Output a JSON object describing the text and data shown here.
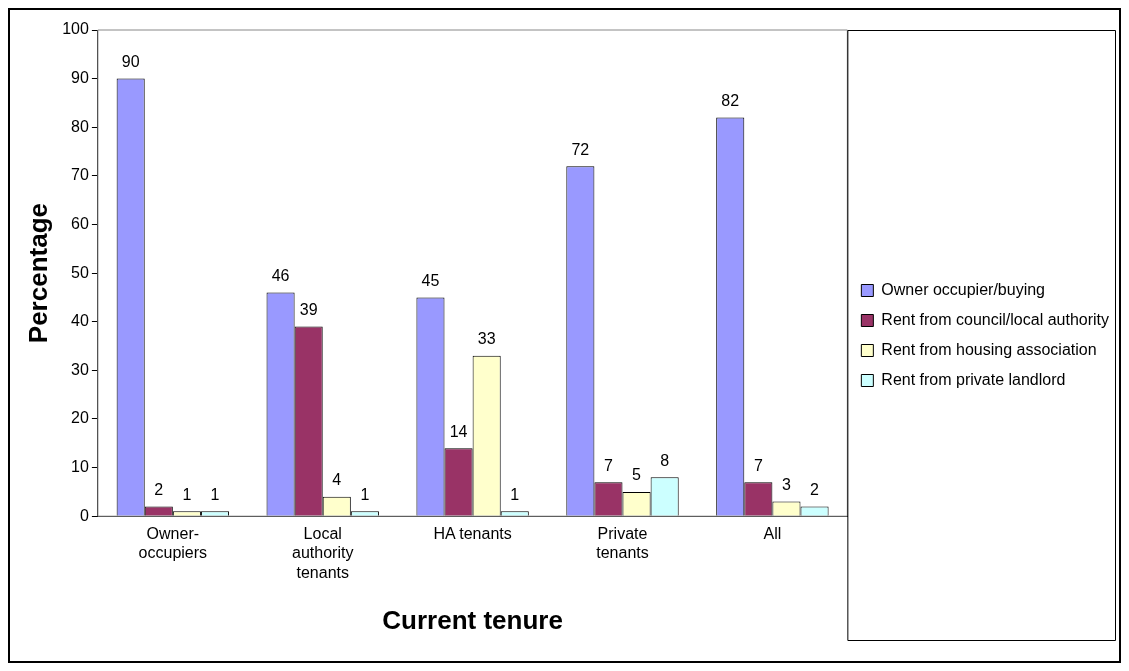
{
  "chart_data": {
    "type": "bar",
    "xlabel": "Current tenure",
    "ylabel": "Percentage",
    "categories": [
      "Owner-occupiers",
      "Local authority tenants",
      "HA tenants",
      "Private tenants",
      "All"
    ],
    "series": [
      {
        "name": "Owner occupier/buying",
        "color": "#9999ff",
        "values": [
          90,
          46,
          45,
          72,
          82
        ]
      },
      {
        "name": "Rent from council/local authority",
        "color": "#993366",
        "values": [
          2,
          39,
          14,
          7,
          7
        ]
      },
      {
        "name": "Rent from housing association",
        "color": "#ffffcc",
        "values": [
          1,
          4,
          33,
          5,
          3
        ]
      },
      {
        "name": "Rent from private landlord",
        "color": "#ccffff",
        "values": [
          1,
          1,
          1,
          8,
          2
        ]
      }
    ],
    "ylim": [
      0,
      100
    ],
    "yticks": [
      0,
      10,
      20,
      30,
      40,
      50,
      60,
      70,
      80,
      90,
      100
    ],
    "grid": false,
    "legend": "right",
    "data_labels": true
  }
}
